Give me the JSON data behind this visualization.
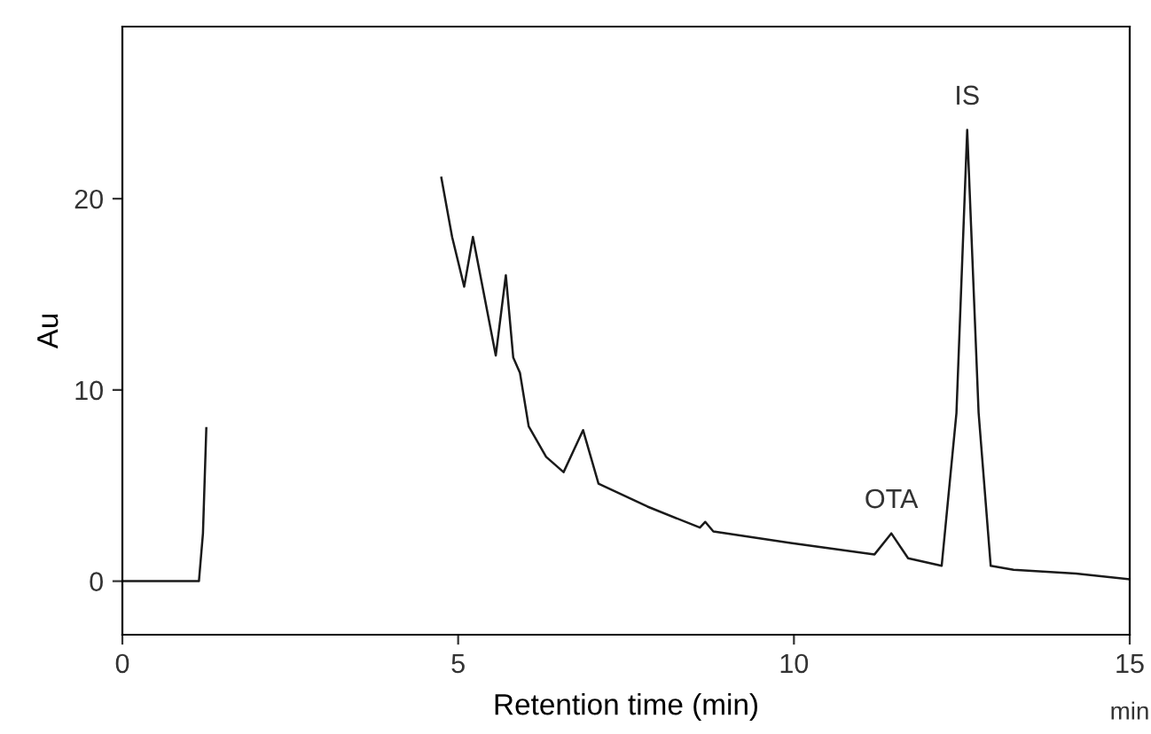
{
  "chart_data": {
    "type": "line",
    "xlabel": "Retention time (min)",
    "ylabel": "Au",
    "xlim": [
      0,
      15
    ],
    "ylim": [
      -2.8,
      29
    ],
    "xticks": [
      0,
      5,
      10,
      15
    ],
    "yticks": [
      0,
      10,
      20
    ],
    "grid": false,
    "series": [
      {
        "color": "#1a1a1a",
        "x": [
          0,
          0.6,
          1.14,
          1.2,
          1.25,
          1.3,
          1.31,
          4.61,
          4.62,
          4.75,
          4.91,
          5.09,
          5.22,
          5.56,
          5.71,
          5.82,
          5.92,
          6.05,
          6.31,
          6.57,
          6.86,
          7.09,
          7.82,
          8.6,
          8.68,
          8.8,
          9.95,
          11.2,
          11.45,
          11.7,
          12.2,
          12.42,
          12.58,
          12.75,
          12.93,
          13.27,
          14.2,
          15
        ],
        "values": [
          0,
          0,
          0,
          2.5,
          8,
          null,
          null,
          null,
          null,
          21.1,
          18,
          15.4,
          18,
          11.8,
          16,
          11.7,
          10.9,
          8.1,
          6.5,
          5.7,
          7.9,
          5.1,
          3.9,
          2.8,
          3.1,
          2.6,
          2,
          1.4,
          2.5,
          1.2,
          0.8,
          8.8,
          23.6,
          8.8,
          0.8,
          0.6,
          0.4,
          0.1
        ]
      }
    ],
    "annotations": [
      {
        "text": "OTA",
        "x": 11.45,
        "y": 2.5
      },
      {
        "text": "IS",
        "x": 12.58,
        "y": 23.6
      },
      "min"
    ]
  }
}
